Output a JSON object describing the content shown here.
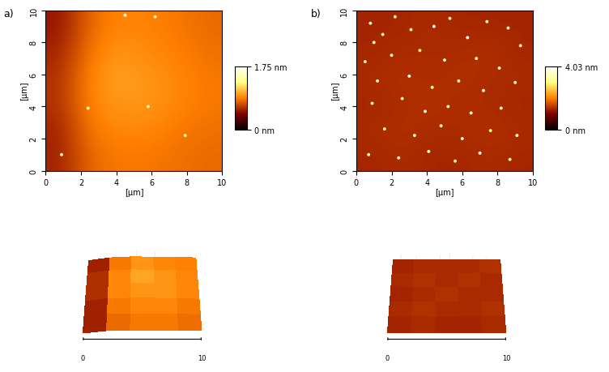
{
  "chart_data": [
    {
      "type": "heatmap",
      "label": "a)",
      "xlabel": "[µm]",
      "ylabel": "[µm]",
      "xlim": [
        0,
        10
      ],
      "ylim": [
        0,
        10
      ],
      "xticks": [
        0,
        2,
        4,
        6,
        8,
        10
      ],
      "yticks": [
        0,
        2,
        4,
        6,
        8,
        10
      ],
      "colorbar": {
        "range": [
          0,
          1.75
        ],
        "ticks": [
          {
            "value": 0,
            "label": "0 nm"
          },
          {
            "value": 1.75,
            "label": "1.75 nm"
          }
        ]
      },
      "cells": [
        [
          0.55,
          0.8,
          0.85,
          0.85,
          0.82,
          0.8
        ],
        [
          0.55,
          0.85,
          0.9,
          0.9,
          0.85,
          0.82
        ],
        [
          0.6,
          0.9,
          0.95,
          0.95,
          0.9,
          0.85
        ],
        [
          0.6,
          0.9,
          1.0,
          0.95,
          0.9,
          0.85
        ],
        [
          0.55,
          0.85,
          0.95,
          0.9,
          0.88,
          0.82
        ],
        [
          0.5,
          0.8,
          0.9,
          0.88,
          0.85,
          0.8
        ]
      ],
      "particles": [
        {
          "x": 4.5,
          "y": 9.7,
          "height": 1.75
        },
        {
          "x": 6.2,
          "y": 9.6,
          "height": 1.7
        },
        {
          "x": 5.8,
          "y": 4.0,
          "height": 1.5
        },
        {
          "x": 0.9,
          "y": 1.0,
          "height": 1.6
        },
        {
          "x": 2.4,
          "y": 3.9,
          "height": 1.5
        },
        {
          "x": 7.9,
          "y": 2.2,
          "height": 1.45
        }
      ],
      "view_3d": {
        "xticks": [
          0,
          10
        ]
      }
    },
    {
      "type": "heatmap",
      "label": "b)",
      "xlabel": "[µm]",
      "ylabel": "[µm]",
      "xlim": [
        0,
        10
      ],
      "ylim": [
        0,
        10
      ],
      "xticks": [
        0,
        2,
        4,
        6,
        8,
        10
      ],
      "yticks": [
        0,
        2,
        4,
        6,
        8,
        10
      ],
      "colorbar": {
        "range": [
          0,
          4.03
        ],
        "ticks": [
          {
            "value": 0,
            "label": "0 nm"
          },
          {
            "value": 4.03,
            "label": "4.03 nm"
          }
        ]
      },
      "cells": [
        [
          1.3,
          1.35,
          1.3,
          1.3,
          1.35,
          1.3
        ],
        [
          1.35,
          1.4,
          1.35,
          1.35,
          1.4,
          1.35
        ],
        [
          1.3,
          1.35,
          1.4,
          1.35,
          1.35,
          1.3
        ],
        [
          1.35,
          1.4,
          1.35,
          1.4,
          1.35,
          1.35
        ],
        [
          1.3,
          1.35,
          1.35,
          1.35,
          1.4,
          1.3
        ],
        [
          1.3,
          1.3,
          1.35,
          1.3,
          1.3,
          1.3
        ]
      ],
      "particles": [
        {
          "x": 0.8,
          "y": 9.2,
          "height": 3.8
        },
        {
          "x": 1.0,
          "y": 8.0,
          "height": 3.6
        },
        {
          "x": 1.5,
          "y": 8.5,
          "height": 3.2
        },
        {
          "x": 2.2,
          "y": 9.6,
          "height": 3.0
        },
        {
          "x": 3.1,
          "y": 8.8,
          "height": 3.4
        },
        {
          "x": 4.4,
          "y": 9.0,
          "height": 4.03
        },
        {
          "x": 5.3,
          "y": 9.5,
          "height": 3.5
        },
        {
          "x": 6.3,
          "y": 8.3,
          "height": 3.9
        },
        {
          "x": 7.4,
          "y": 9.3,
          "height": 3.3
        },
        {
          "x": 8.6,
          "y": 8.9,
          "height": 3.6
        },
        {
          "x": 9.3,
          "y": 7.8,
          "height": 3.1
        },
        {
          "x": 0.5,
          "y": 6.8,
          "height": 3.3
        },
        {
          "x": 2.0,
          "y": 7.2,
          "height": 3.5
        },
        {
          "x": 3.6,
          "y": 7.5,
          "height": 3.0
        },
        {
          "x": 5.0,
          "y": 6.9,
          "height": 3.7
        },
        {
          "x": 6.8,
          "y": 7.0,
          "height": 3.4
        },
        {
          "x": 8.1,
          "y": 6.4,
          "height": 3.6
        },
        {
          "x": 1.2,
          "y": 5.6,
          "height": 3.2
        },
        {
          "x": 3.0,
          "y": 5.9,
          "height": 3.8
        },
        {
          "x": 4.3,
          "y": 5.2,
          "height": 3.1
        },
        {
          "x": 5.8,
          "y": 5.6,
          "height": 3.5
        },
        {
          "x": 7.2,
          "y": 5.0,
          "height": 3.9
        },
        {
          "x": 9.0,
          "y": 5.5,
          "height": 3.3
        },
        {
          "x": 0.9,
          "y": 4.2,
          "height": 3.4
        },
        {
          "x": 2.6,
          "y": 4.5,
          "height": 3.0
        },
        {
          "x": 3.9,
          "y": 3.7,
          "height": 3.9
        },
        {
          "x": 5.2,
          "y": 4.0,
          "height": 3.2
        },
        {
          "x": 6.5,
          "y": 3.6,
          "height": 3.6
        },
        {
          "x": 8.2,
          "y": 3.9,
          "height": 3.5
        },
        {
          "x": 1.6,
          "y": 2.6,
          "height": 3.1
        },
        {
          "x": 3.3,
          "y": 2.2,
          "height": 3.7
        },
        {
          "x": 4.8,
          "y": 2.8,
          "height": 3.3
        },
        {
          "x": 6.0,
          "y": 2.0,
          "height": 3.8
        },
        {
          "x": 7.6,
          "y": 2.5,
          "height": 3.0
        },
        {
          "x": 9.1,
          "y": 2.2,
          "height": 3.4
        },
        {
          "x": 0.7,
          "y": 1.0,
          "height": 3.5
        },
        {
          "x": 2.4,
          "y": 0.8,
          "height": 3.2
        },
        {
          "x": 4.1,
          "y": 1.2,
          "height": 3.6
        },
        {
          "x": 5.6,
          "y": 0.6,
          "height": 3.1
        },
        {
          "x": 7.0,
          "y": 1.1,
          "height": 3.9
        },
        {
          "x": 8.7,
          "y": 0.7,
          "height": 3.3
        }
      ],
      "view_3d": {
        "xticks": [
          0,
          10
        ]
      }
    }
  ]
}
